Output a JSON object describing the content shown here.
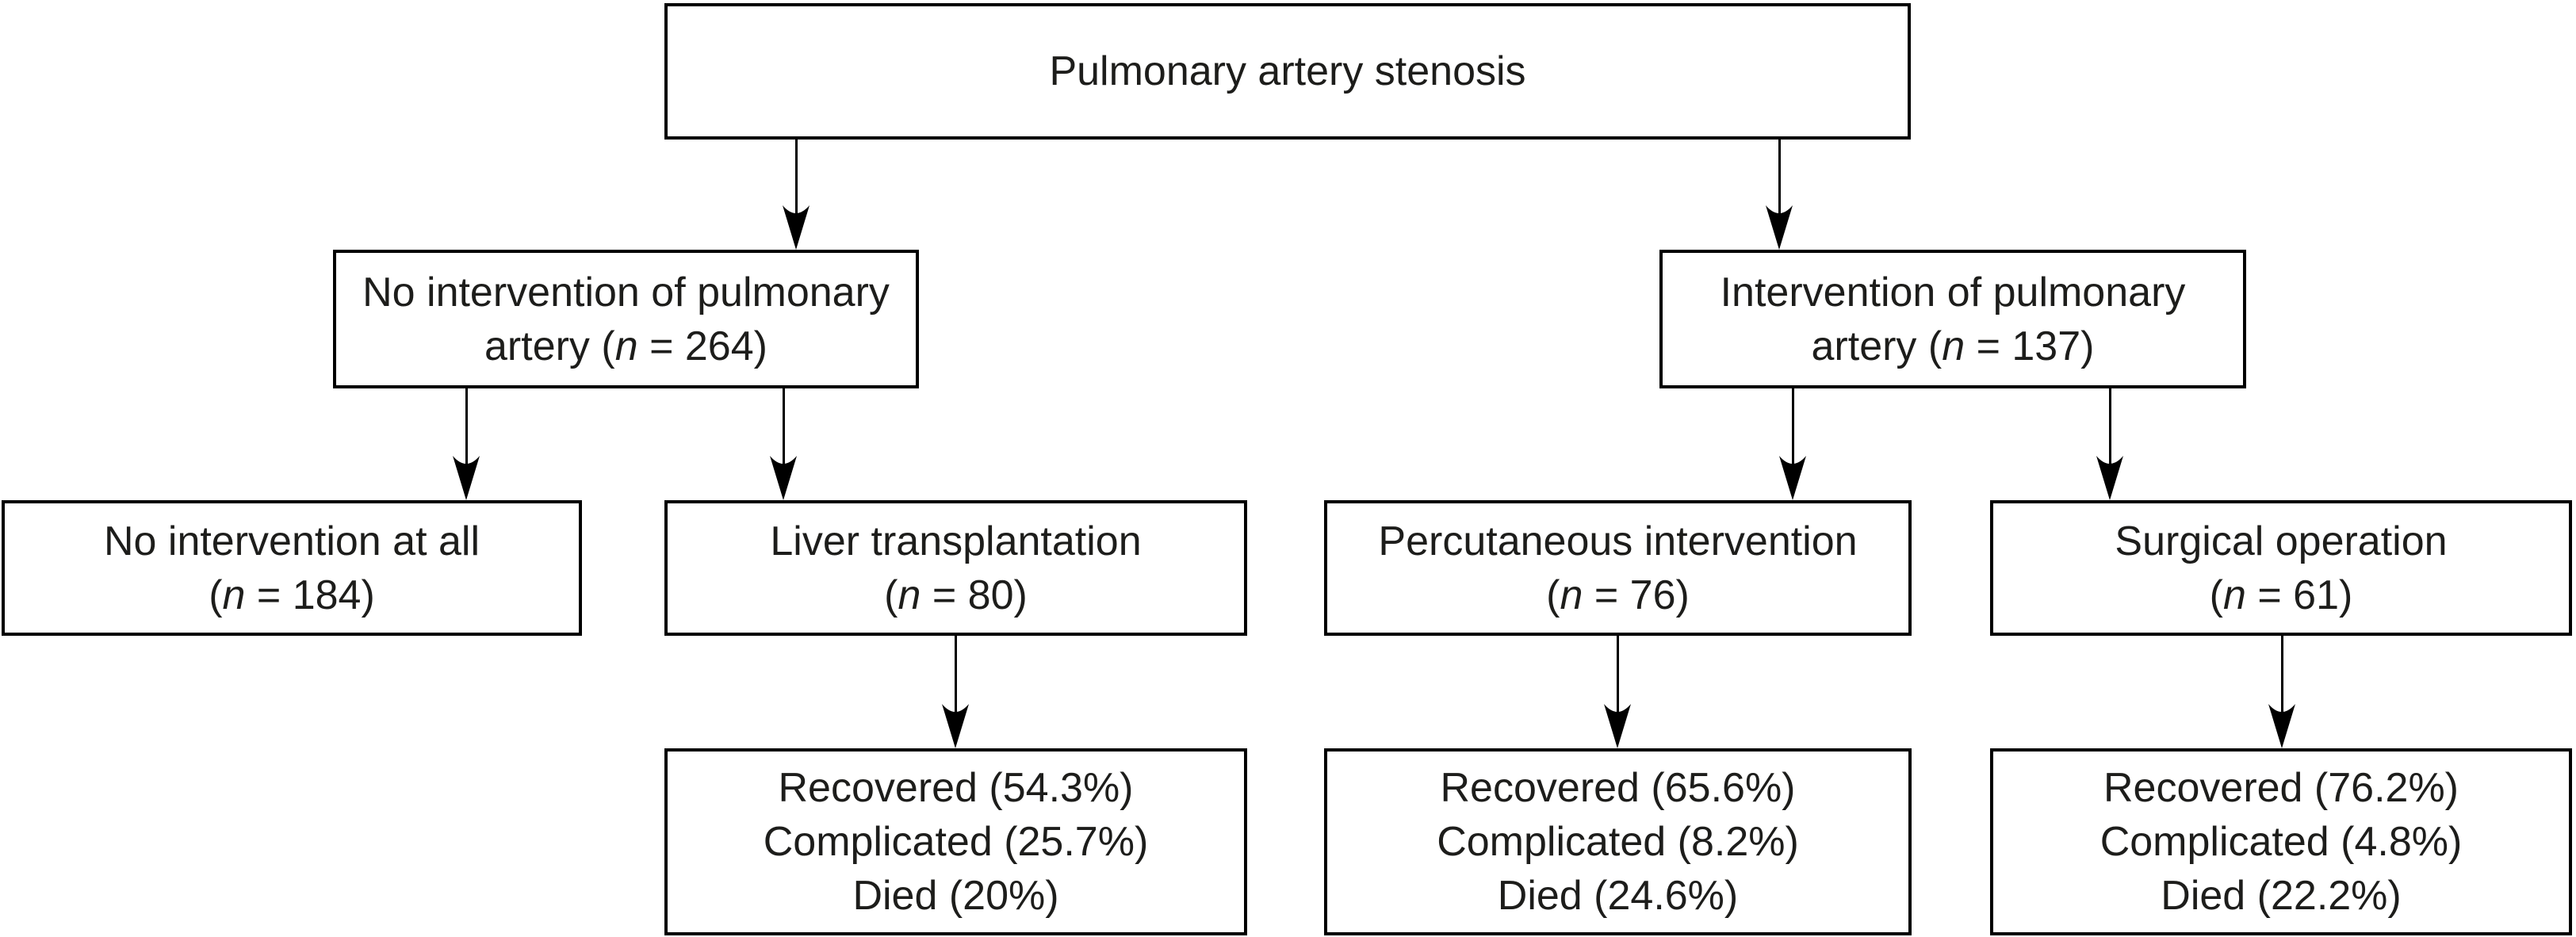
{
  "diagram": {
    "type": "flowchart",
    "colors": {
      "background": "#ffffff",
      "box_border": "#000000",
      "connector": "#000000",
      "text": "#1d1d1b"
    },
    "nodes": {
      "root": {
        "lines": [
          "Pulmonary artery stenosis"
        ]
      },
      "no_intervention_branch": {
        "lines": [
          "No intervention of pulmonary",
          "artery (n = 264)"
        ]
      },
      "intervention_branch": {
        "lines": [
          "Intervention of pulmonary",
          "artery (n = 137)"
        ]
      },
      "no_intervention_at_all": {
        "lines": [
          "No intervention at all",
          "(n = 184)"
        ]
      },
      "liver_transplantation": {
        "lines": [
          "Liver transplantation",
          "(n = 80)"
        ]
      },
      "percutaneous_intervention": {
        "lines": [
          "Percutaneous intervention",
          "(n = 76)"
        ]
      },
      "surgical_operation": {
        "lines": [
          "Surgical operation",
          "(n = 61)"
        ]
      },
      "liver_transplant_outcomes": {
        "lines": [
          "Recovered (54.3%)",
          "Complicated (25.7%)",
          "Died (20%)"
        ]
      },
      "percutaneous_outcomes": {
        "lines": [
          "Recovered (65.6%)",
          "Complicated (8.2%)",
          "Died (24.6%)"
        ]
      },
      "surgical_outcomes": {
        "lines": [
          "Recovered (76.2%)",
          "Complicated (4.8%)",
          "Died (22.2%)"
        ]
      }
    },
    "edges": [
      {
        "from": "root",
        "to": "no_intervention_branch"
      },
      {
        "from": "root",
        "to": "intervention_branch"
      },
      {
        "from": "no_intervention_branch",
        "to": "no_intervention_at_all"
      },
      {
        "from": "no_intervention_branch",
        "to": "liver_transplantation"
      },
      {
        "from": "intervention_branch",
        "to": "percutaneous_intervention"
      },
      {
        "from": "intervention_branch",
        "to": "surgical_operation"
      },
      {
        "from": "liver_transplantation",
        "to": "liver_transplant_outcomes"
      },
      {
        "from": "percutaneous_intervention",
        "to": "percutaneous_outcomes"
      },
      {
        "from": "surgical_operation",
        "to": "surgical_outcomes"
      }
    ]
  }
}
